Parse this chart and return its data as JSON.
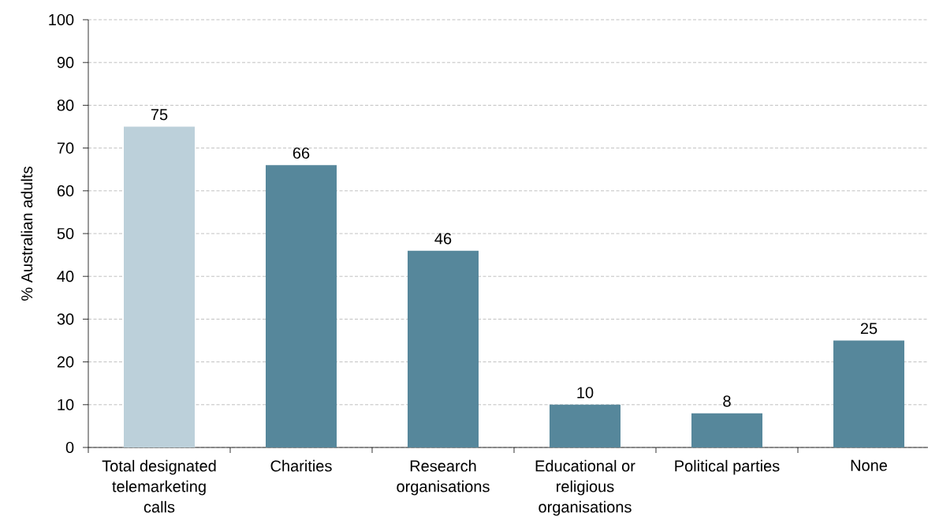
{
  "chart_data": {
    "type": "bar",
    "ylabel": "% Australian adults",
    "categories": [
      "Total designated telemarketing calls",
      "Charities",
      "Research organisations",
      "Educational or religious organisations",
      "Political parties",
      "None"
    ],
    "values": [
      75,
      66,
      46,
      10,
      8,
      25
    ],
    "colors": [
      "#bcd0da",
      "#56879b",
      "#56879b",
      "#56879b",
      "#56879b",
      "#56879b"
    ],
    "ylim": [
      0,
      100
    ],
    "yticks": [
      0,
      10,
      20,
      30,
      40,
      50,
      60,
      70,
      80,
      90,
      100
    ],
    "grid": "y",
    "data_labels": true
  }
}
